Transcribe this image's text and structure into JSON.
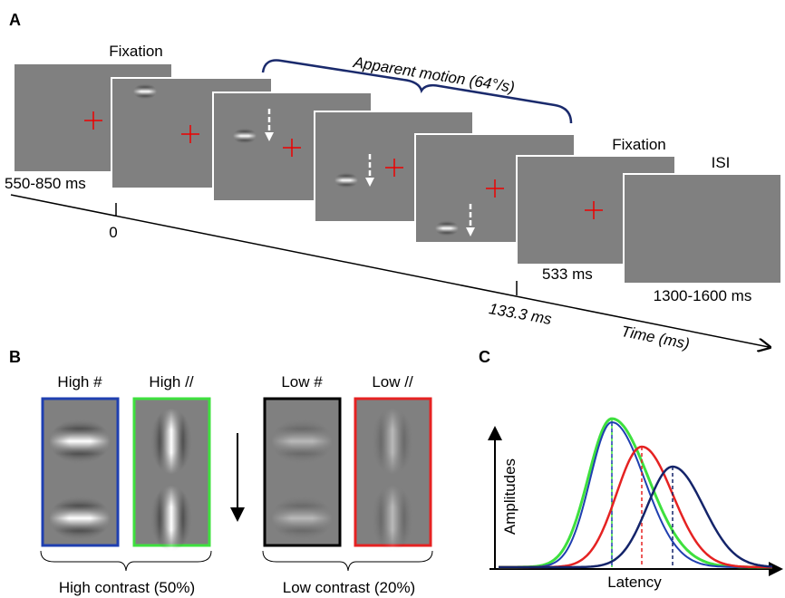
{
  "panel_a": {
    "label": "A",
    "first_fixation": {
      "title": "Fixation",
      "duration": "550-850 ms"
    },
    "onset_tick": "0",
    "apparent_motion": "Apparent motion (64°/s)",
    "motion_end_tick": "133.3 ms",
    "final_fixation": {
      "title": "Fixation",
      "duration": "533 ms"
    },
    "isi": {
      "title": "ISI",
      "duration": "1300-1600 ms"
    },
    "time_axis": "Time (ms)"
  },
  "panel_b": {
    "label": "B",
    "conditions": [
      "High #",
      "High //",
      "Low #",
      "Low //"
    ],
    "groups": [
      "High contrast (50%)",
      "Low contrast (20%)"
    ]
  },
  "panel_c": {
    "label": "C",
    "y_axis": "Amplitudes",
    "x_axis": "Latency"
  }
}
